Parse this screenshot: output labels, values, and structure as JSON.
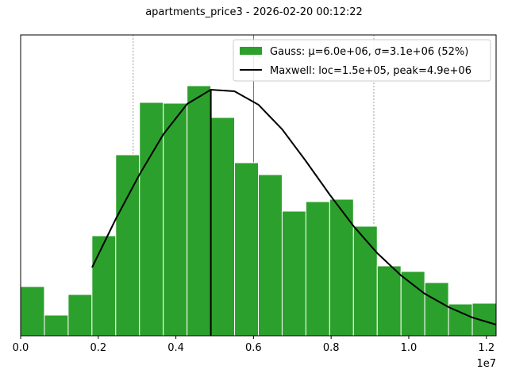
{
  "title": "apartments_price3  -  2026-02-20 00:12:22",
  "chart_data": {
    "type": "bar",
    "title": "apartments_price3  -  2026-02-20 00:12:22",
    "xlabel": "",
    "ylabel": "",
    "x_offset_label": "1e7",
    "xlim": [
      0,
      12250000
    ],
    "x_ticks": [
      0.0,
      0.2,
      0.4,
      0.6,
      0.8,
      1.0,
      1.2
    ],
    "x_tick_labels": [
      "0.0",
      "0.2",
      "0.4",
      "0.6",
      "0.8",
      "1.0",
      "1.2"
    ],
    "y_ticks_visible": false,
    "grid": "vertical dashed lines at 2.9e6 and 9.1e6, solid lines at 4.9e6 and 6.0e6",
    "bin_width": 612500,
    "bin_edges_start": 0,
    "categories": [
      "0.00e6",
      "0.61e6",
      "1.23e6",
      "1.84e6",
      "2.45e6",
      "3.06e6",
      "3.68e6",
      "4.29e6",
      "4.90e6",
      "5.51e6",
      "6.13e6",
      "6.74e6",
      "7.35e6",
      "7.96e6",
      "8.58e6",
      "9.19e6",
      "9.80e6",
      "10.41e6",
      "11.03e6",
      "11.64e6"
    ],
    "values": [
      62,
      26,
      52,
      126,
      228,
      294,
      293,
      315,
      275,
      218,
      203,
      157,
      169,
      172,
      138,
      88,
      81,
      67,
      40,
      41
    ],
    "bar_color": "#2ca02c",
    "series": [
      {
        "name": "Gauss: μ=6.0e+06, σ=3.1e+06 (52%)",
        "type": "histogram",
        "color": "#2ca02c"
      },
      {
        "name": "Maxwell: loc=1.5e+05, peak=4.9e+06",
        "type": "line",
        "color": "#000000",
        "x": [
          1.84,
          2.45,
          3.06,
          3.68,
          4.29,
          4.9,
          5.51,
          6.13,
          6.74,
          7.35,
          7.96,
          8.58,
          9.19,
          9.8,
          10.41,
          11.03,
          11.64,
          12.25
        ],
        "values": [
          86,
          147,
          203,
          254,
          292,
          310,
          308,
          291,
          260,
          220,
          178,
          138,
          104,
          76,
          53,
          36,
          23,
          14
        ]
      }
    ],
    "vlines": [
      {
        "x": 2.9,
        "style": "dashed",
        "color": "#888888"
      },
      {
        "x": 4.9,
        "style": "solid-black-vertical-from-curve",
        "color": "#000000"
      },
      {
        "x": 6.0,
        "style": "solid",
        "color": "#555555"
      },
      {
        "x": 9.1,
        "style": "dashed",
        "color": "#888888"
      }
    ],
    "legend_position": "upper right"
  },
  "legend": {
    "items": [
      {
        "label": "Gauss: μ=6.0e+06, σ=3.1e+06 (52%)",
        "kind": "patch",
        "color": "#2ca02c"
      },
      {
        "label": "Maxwell: loc=1.5e+05, peak=4.9e+06",
        "kind": "line",
        "color": "#000000"
      }
    ]
  }
}
